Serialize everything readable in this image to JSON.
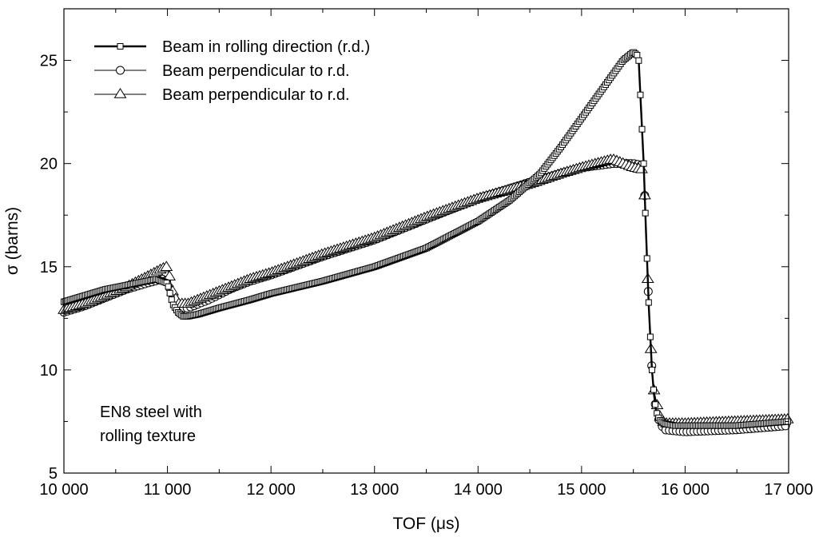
{
  "chart_data": {
    "type": "line",
    "xlabel": "TOF (μs)",
    "ylabel": "σ (barns)",
    "xlim": [
      10000,
      17000
    ],
    "ylim": [
      5,
      27.5
    ],
    "xticks": [
      10000,
      11000,
      12000,
      13000,
      14000,
      15000,
      16000,
      17000
    ],
    "xtick_labels": [
      "10 000",
      "11 000",
      "12 000",
      "13 000",
      "14 000",
      "15 000",
      "16 000",
      "17 000"
    ],
    "yticks": [
      5,
      10,
      15,
      20,
      25
    ],
    "ytick_labels": [
      "5",
      "10",
      "15",
      "20",
      "25"
    ],
    "grid": false,
    "legend_position": "top-left",
    "annotation": [
      "EN8 steel with",
      "rolling texture"
    ],
    "series": [
      {
        "name": "Beam in rolling direction (r.d.)",
        "marker": "square",
        "line": "thick",
        "x": [
          10000,
          10200,
          10400,
          10600,
          10800,
          10900,
          10950,
          11000,
          11050,
          11100,
          11150,
          11200,
          11300,
          11500,
          11800,
          12000,
          12500,
          13000,
          13500,
          14000,
          14300,
          14600,
          14800,
          15000,
          15200,
          15400,
          15500,
          15550,
          15600,
          15620,
          15650,
          15680,
          15700,
          15720,
          15750,
          15800,
          15900,
          16000,
          16500,
          17000
        ],
        "y": [
          13.3,
          13.6,
          13.9,
          14.1,
          14.3,
          14.4,
          14.3,
          14.2,
          13.2,
          12.8,
          12.6,
          12.6,
          12.7,
          13.0,
          13.4,
          13.7,
          14.3,
          15.0,
          15.9,
          17.2,
          18.2,
          19.5,
          20.8,
          22.2,
          23.6,
          25.0,
          25.4,
          25.2,
          20.0,
          17.0,
          13.0,
          10.0,
          8.8,
          8.0,
          7.6,
          7.4,
          7.3,
          7.3,
          7.3,
          7.5
        ]
      },
      {
        "name": "Beam perpendicular to r.d.",
        "marker": "circle",
        "line": "thin",
        "x": [
          10000,
          10200,
          10400,
          10600,
          10800,
          10950,
          11000,
          11050,
          11100,
          11200,
          11400,
          11600,
          11800,
          12000,
          12500,
          13000,
          13500,
          14000,
          14500,
          15000,
          15300,
          15500,
          15600,
          15620,
          15650,
          15680,
          15700,
          15750,
          15800,
          16000,
          16500,
          17000
        ],
        "y": [
          12.8,
          13.1,
          13.5,
          13.9,
          14.2,
          14.4,
          14.3,
          13.5,
          13.0,
          13.0,
          13.4,
          13.9,
          14.3,
          14.6,
          15.5,
          16.3,
          17.3,
          18.3,
          19.1,
          19.8,
          20.0,
          20.0,
          19.9,
          17.0,
          13.0,
          10.0,
          8.6,
          7.5,
          7.1,
          7.0,
          7.1,
          7.3
        ]
      },
      {
        "name": "Beam perpendicular to r.d.",
        "marker": "triangle",
        "line": "thin",
        "x": [
          10000,
          10200,
          10400,
          10600,
          10800,
          10950,
          11000,
          11050,
          11100,
          11200,
          11400,
          11600,
          11800,
          12000,
          12500,
          13000,
          13500,
          14000,
          14500,
          14800,
          15000,
          15300,
          15400,
          15500,
          15600,
          15620,
          15650,
          15680,
          15700,
          15750,
          15800,
          16000,
          16500,
          17000
        ],
        "y": [
          12.9,
          13.2,
          13.6,
          14.0,
          14.5,
          14.9,
          15.0,
          13.8,
          13.2,
          13.2,
          13.6,
          14.0,
          14.4,
          14.7,
          15.6,
          16.4,
          17.4,
          18.3,
          19.0,
          19.5,
          19.8,
          20.2,
          20.0,
          19.8,
          19.7,
          17.2,
          13.0,
          10.0,
          9.0,
          7.8,
          7.4,
          7.4,
          7.5,
          7.6
        ]
      }
    ]
  }
}
